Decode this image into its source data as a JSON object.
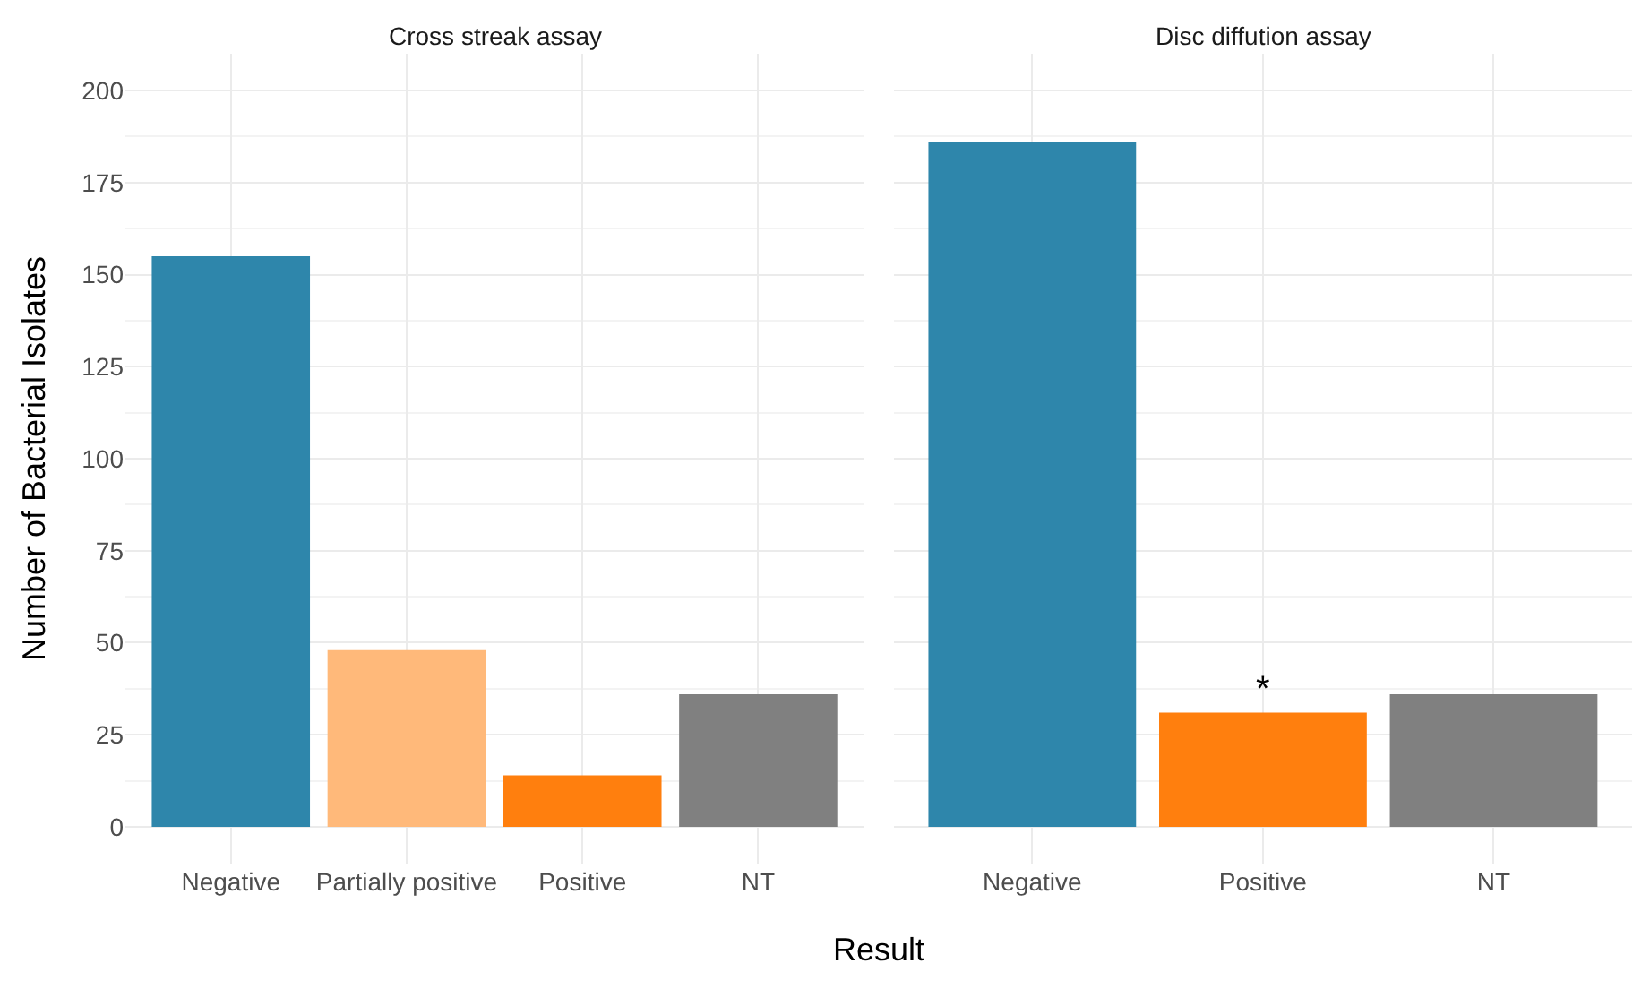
{
  "chart_data": [
    {
      "type": "bar",
      "title": "Cross streak assay",
      "xlabel": "Result",
      "ylabel": "Number of Bacterial Isolates",
      "categories": [
        "Negative",
        "Partially positive",
        "Positive",
        "NT"
      ],
      "values": [
        155,
        48,
        14,
        36
      ],
      "colors": [
        "#2e86ab",
        "#ffb97a",
        "#ff7f0e",
        "#808080"
      ],
      "ylim": [
        -10,
        210
      ],
      "yticks": [
        0,
        25,
        50,
        75,
        100,
        125,
        150,
        175,
        200
      ],
      "grid": true,
      "legend": false
    },
    {
      "type": "bar",
      "title": "Disc diffution assay",
      "categories": [
        "Negative",
        "Positive",
        "NT"
      ],
      "values": [
        186,
        31,
        36
      ],
      "colors": [
        "#2e86ab",
        "#ff7f0e",
        "#808080"
      ],
      "ylim": [
        -10,
        210
      ],
      "yticks": [
        0,
        25,
        50,
        75,
        100,
        125,
        150,
        175,
        200
      ],
      "grid": true,
      "legend": false,
      "tick_labels": "x",
      "annotations": [
        {
          "text": "*",
          "x": "Positive",
          "y": 31
        }
      ]
    }
  ]
}
